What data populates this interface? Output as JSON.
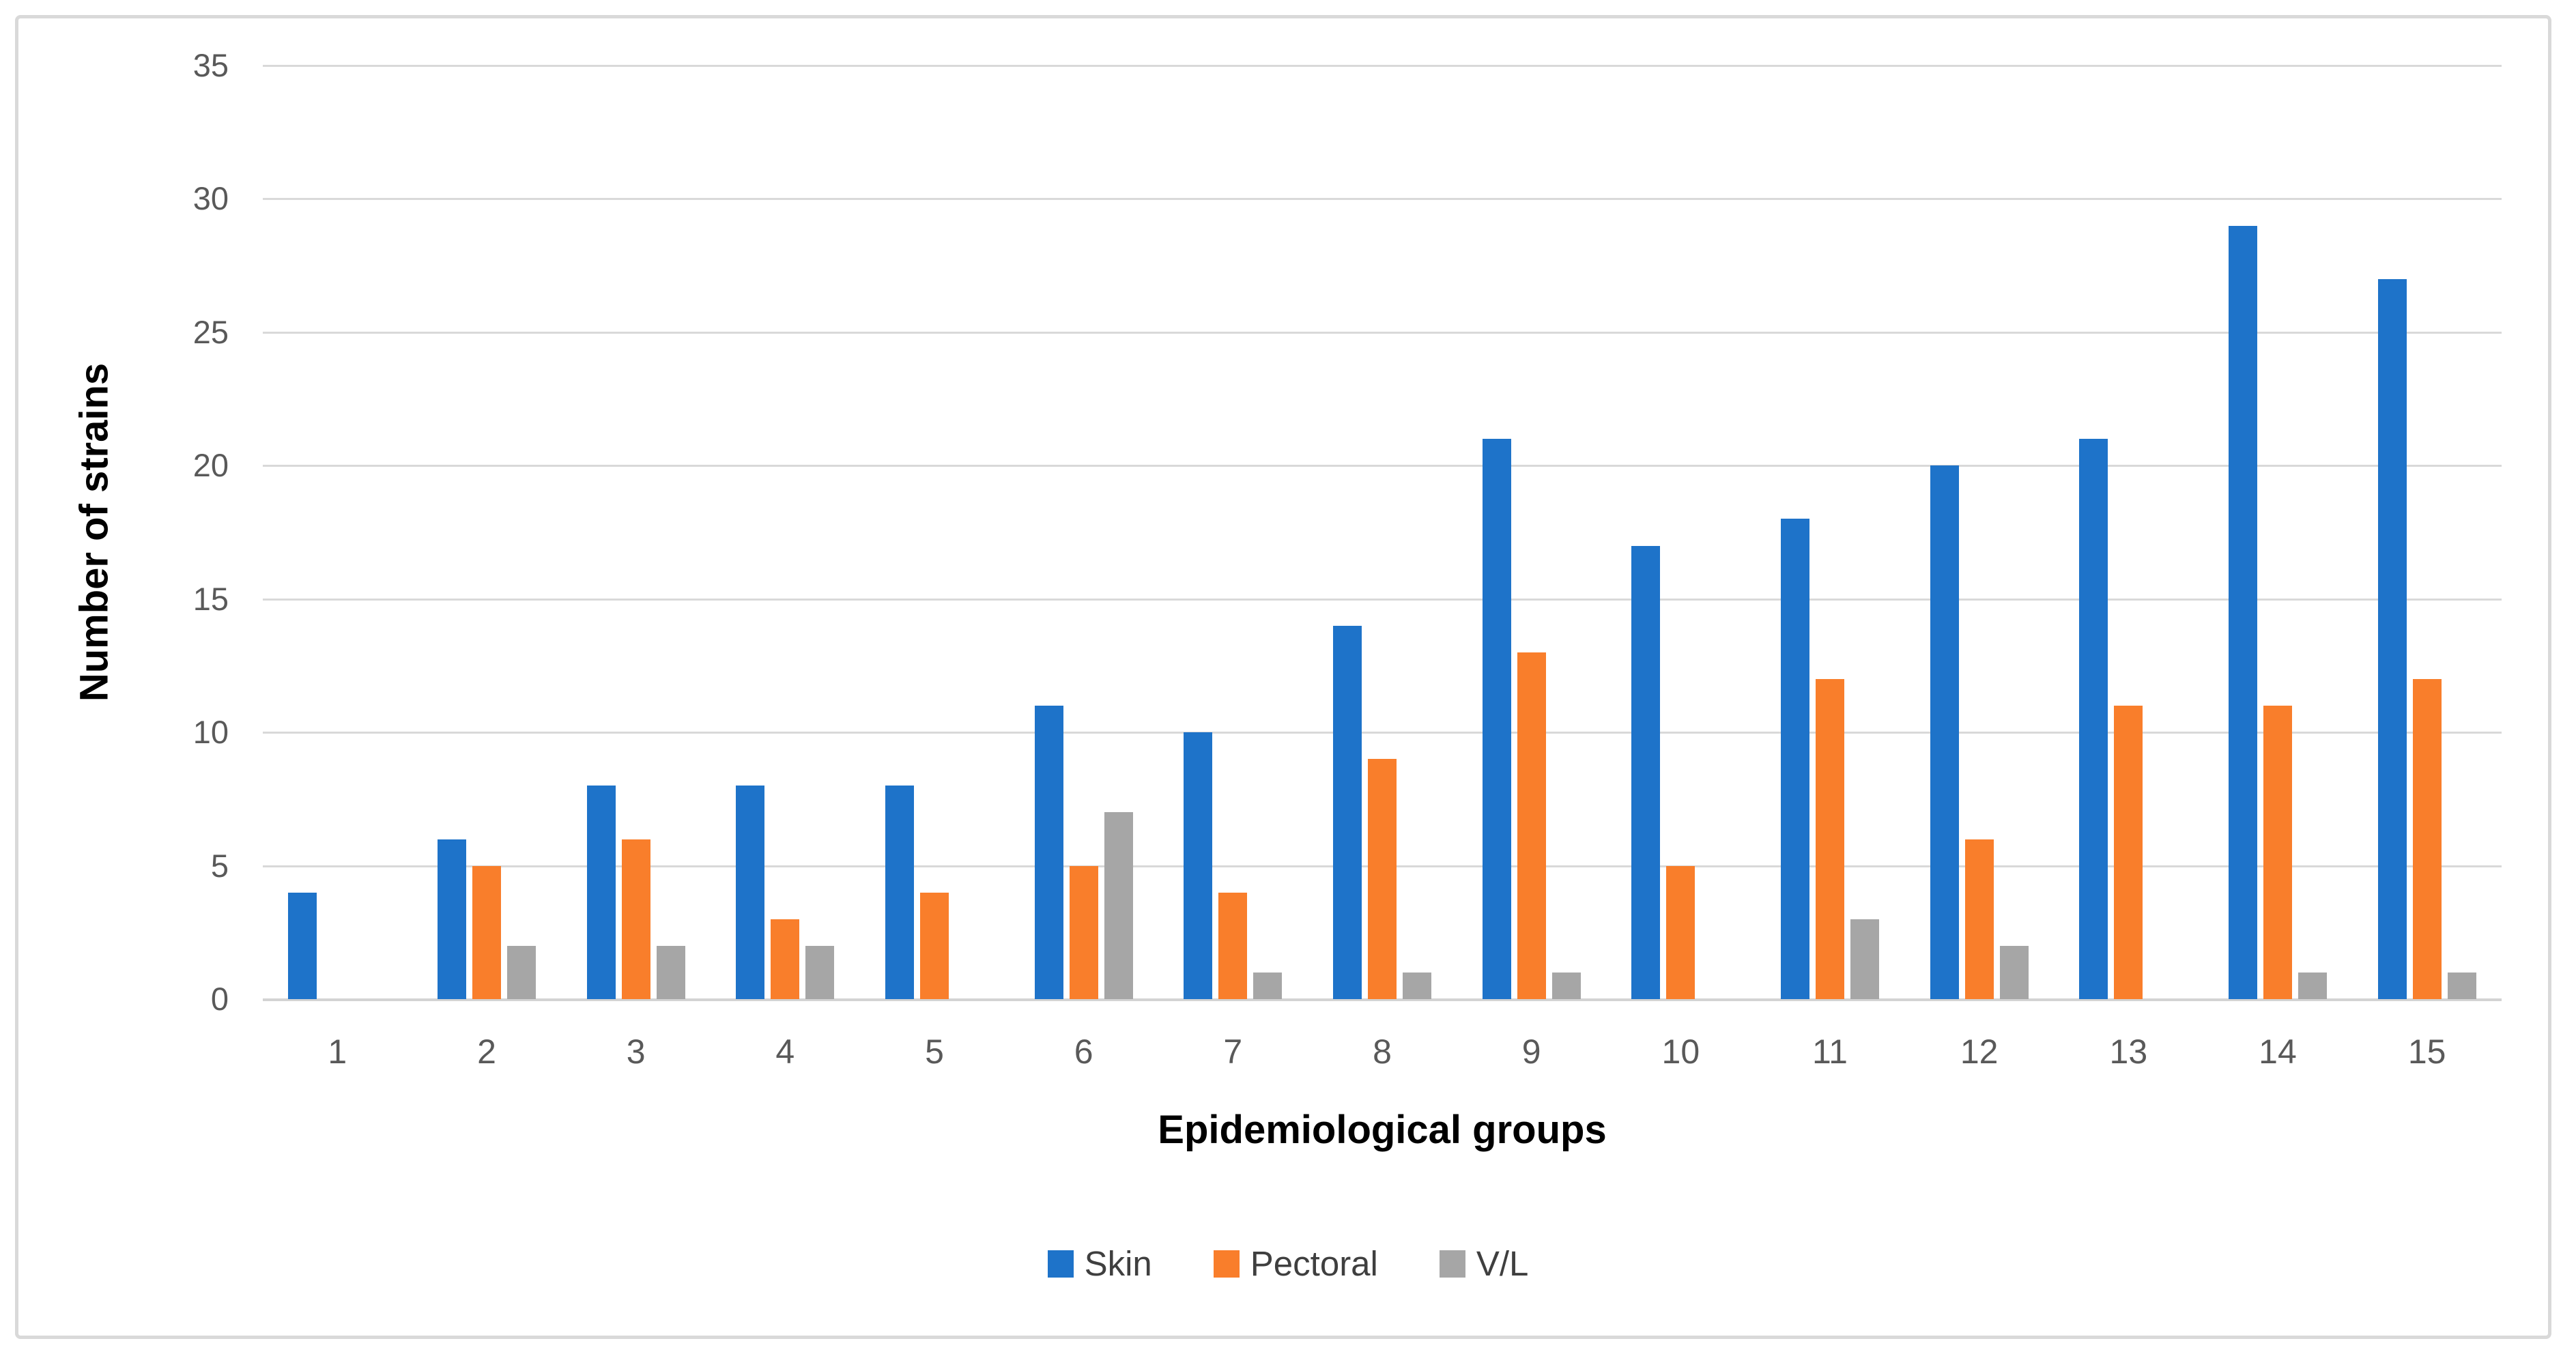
{
  "chart_data": {
    "type": "bar",
    "title": "",
    "xlabel": "Epidemiological groups",
    "ylabel": "Number of strains",
    "categories": [
      "1",
      "2",
      "3",
      "4",
      "5",
      "6",
      "7",
      "8",
      "9",
      "10",
      "11",
      "12",
      "13",
      "14",
      "15"
    ],
    "series": [
      {
        "name": "Skin",
        "color": "#1E73C9",
        "values": [
          4,
          6,
          8,
          8,
          8,
          11,
          10,
          14,
          21,
          17,
          18,
          20,
          21,
          29,
          27
        ]
      },
      {
        "name": "Pectoral",
        "color": "#F97E2B",
        "values": [
          0,
          5,
          6,
          3,
          4,
          5,
          4,
          9,
          13,
          5,
          12,
          6,
          11,
          11,
          12
        ]
      },
      {
        "name": "V/L",
        "color": "#A6A6A6",
        "values": [
          0,
          2,
          2,
          2,
          0,
          7,
          1,
          1,
          1,
          0,
          3,
          2,
          0,
          1,
          1
        ]
      }
    ],
    "ylim": [
      0,
      35
    ],
    "yticks": [
      0,
      5,
      10,
      15,
      20,
      25,
      30,
      35
    ],
    "grid": true,
    "legend_position": "bottom"
  },
  "colors": {
    "frame_border": "#D9D9D9",
    "gridline": "#D9D9D9",
    "tick_text": "#595959",
    "legend_text": "#3F3F3F"
  }
}
